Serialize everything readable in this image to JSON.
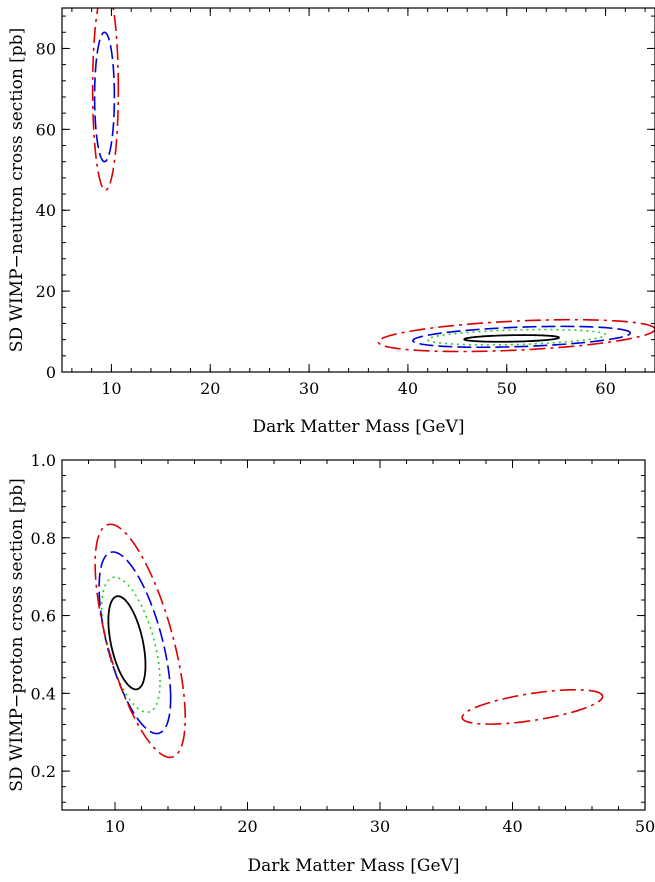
{
  "chart_data": [
    {
      "type": "contour",
      "xlabel": "Dark Matter Mass [GeV]",
      "ylabel": "SD WIMP−neutron cross section [pb]",
      "xlim": [
        5,
        65
      ],
      "ylim": [
        0,
        90
      ],
      "x_ticks": [
        10,
        20,
        30,
        40,
        50,
        60
      ],
      "y_ticks": [
        0,
        20,
        40,
        60,
        80
      ],
      "grid": false,
      "legend": "none",
      "colors": {
        "black": "#000000",
        "green": "#22cc22",
        "blue": "#0000dd",
        "red": "#dd0000"
      },
      "series": [
        {
          "style": "solid",
          "color": "#000000",
          "contours": [
            {
              "cx": 50.5,
              "cy": 8.3,
              "rx": 4.8,
              "ry": 0.8,
              "tilt": 0.12
            }
          ]
        },
        {
          "style": "dotted",
          "color": "#22cc22",
          "contours": [
            {
              "cx": 51.0,
              "cy": 8.6,
              "rx": 9.0,
              "ry": 1.8,
              "tilt": 0.15
            }
          ]
        },
        {
          "style": "dashed",
          "color": "#0000dd",
          "contours": [
            {
              "cx": 9.3,
              "cy": 68.0,
              "rx": 1.0,
              "ry": 16.0,
              "tilt": 0
            },
            {
              "cx": 51.5,
              "cy": 8.7,
              "rx": 11.0,
              "ry": 2.4,
              "tilt": 0.18
            }
          ]
        },
        {
          "style": "dashdot",
          "color": "#dd0000",
          "contours": [
            {
              "cx": 9.4,
              "cy": 70.0,
              "rx": 1.3,
              "ry": 25.0,
              "tilt": 0
            },
            {
              "cx": 51.0,
              "cy": 9.0,
              "rx": 14.0,
              "ry": 3.6,
              "tilt": 0.2
            }
          ]
        }
      ]
    },
    {
      "type": "contour",
      "xlabel": "Dark Matter Mass [GeV]",
      "ylabel": "SD WIMP−proton cross section [pb]",
      "xlim": [
        6,
        50
      ],
      "ylim": [
        0.1,
        1.0
      ],
      "x_ticks": [
        10,
        20,
        30,
        40,
        50
      ],
      "y_ticks": [
        0.2,
        0.4,
        0.6,
        0.8,
        1.0
      ],
      "grid": false,
      "legend": "none",
      "colors": {
        "black": "#000000",
        "green": "#22cc22",
        "blue": "#0000dd",
        "red": "#dd0000"
      },
      "series": [
        {
          "style": "solid",
          "color": "#000000",
          "contours": [
            {
              "cx": 10.9,
              "cy": 0.53,
              "rx": 1.4,
              "ry": 0.105,
              "tilt": -0.25
            }
          ]
        },
        {
          "style": "dotted",
          "color": "#22cc22",
          "contours": [
            {
              "cx": 11.2,
              "cy": 0.525,
              "rx": 2.2,
              "ry": 0.145,
              "tilt": -0.3
            }
          ]
        },
        {
          "style": "dashed",
          "color": "#0000dd",
          "contours": [
            {
              "cx": 11.5,
              "cy": 0.53,
              "rx": 2.7,
              "ry": 0.185,
              "tilt": -0.35
            }
          ]
        },
        {
          "style": "dashdot",
          "color": "#dd0000",
          "contours": [
            {
              "cx": 11.9,
              "cy": 0.535,
              "rx": 3.4,
              "ry": 0.225,
              "tilt": -0.4
            },
            {
              "cx": 41.5,
              "cy": 0.365,
              "rx": 5.3,
              "ry": 0.035,
              "tilt": 0.35
            }
          ]
        }
      ]
    }
  ]
}
